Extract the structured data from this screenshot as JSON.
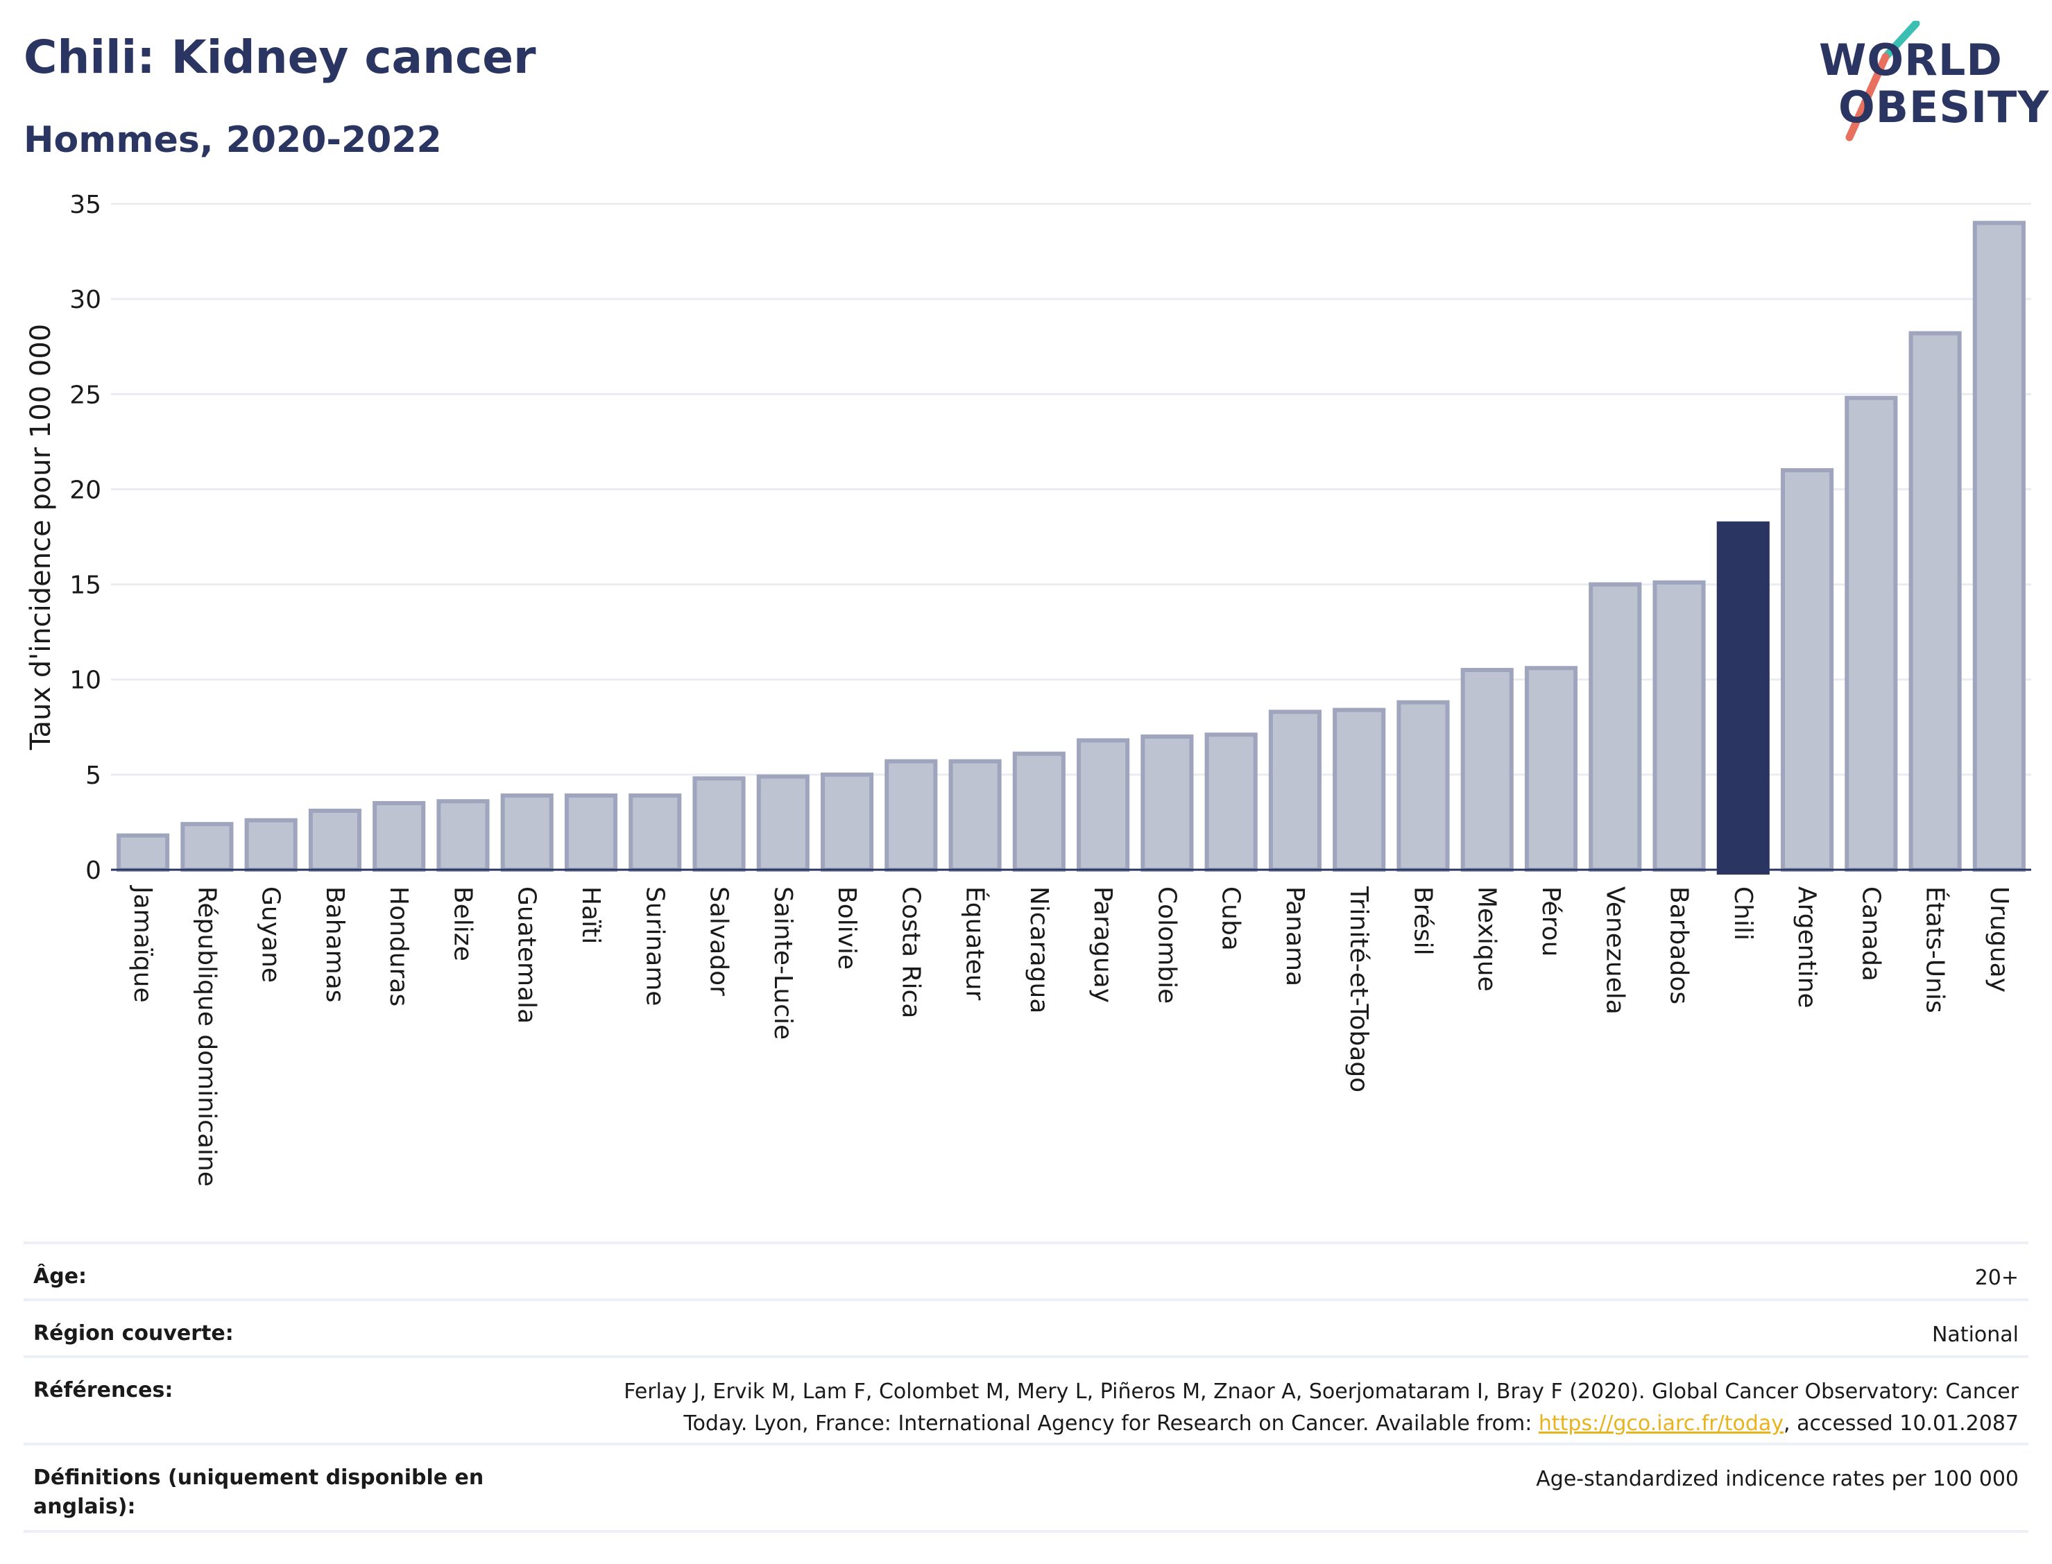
{
  "header": {
    "title": "Chili: Kidney cancer",
    "subtitle": "Hommes, 2020-2022"
  },
  "logo": {
    "line1": "WORLD",
    "line2": "OBESITY",
    "colors": {
      "text": "#2a3561",
      "slash_top": "#3bbfb3",
      "slash_bottom": "#e8705e"
    }
  },
  "chart_data": {
    "type": "bar",
    "xlabel": "",
    "ylabel": "Taux d'incidence pour 100 000",
    "ylim": [
      0,
      35
    ],
    "yticks": [
      0,
      5,
      10,
      15,
      20,
      25,
      30,
      35
    ],
    "grid": true,
    "legend": "none",
    "highlight": "Chili",
    "colors": {
      "bar": "#bec3d1",
      "bar_edge": "#9ea5bd",
      "highlight": "#2a3561",
      "grid": "#eaecf2"
    },
    "categories": [
      "Jamaïque",
      "République dominicaine",
      "Guyane",
      "Bahamas",
      "Honduras",
      "Belize",
      "Guatemala",
      "Haïti",
      "Suriname",
      "Salvador",
      "Sainte-Lucie",
      "Bolivie",
      "Costa Rica",
      "Équateur",
      "Nicaragua",
      "Paraguay",
      "Colombie",
      "Cuba",
      "Panama",
      "Trinité-et-Tobago",
      "Brésil",
      "Mexique",
      "Pérou",
      "Venezuela",
      "Barbados",
      "Chili",
      "Argentine",
      "Canada",
      "États-Unis",
      "Uruguay"
    ],
    "values": [
      1.8,
      2.4,
      2.6,
      3.1,
      3.5,
      3.6,
      3.9,
      3.9,
      3.9,
      4.8,
      4.9,
      5.0,
      5.7,
      5.7,
      6.1,
      6.8,
      7.0,
      7.1,
      8.3,
      8.4,
      8.8,
      10.5,
      10.6,
      15.0,
      15.1,
      18.2,
      21.0,
      24.8,
      28.2,
      34.0
    ]
  },
  "meta": [
    {
      "key": "Âge:",
      "value": "20+"
    },
    {
      "key": "Région couverte:",
      "value": "National"
    },
    {
      "key": "Références:",
      "value_before": "Ferlay J, Ervik M, Lam F, Colombet M, Mery L, Piñeros M, Znaor A, Soerjomataram I, Bray F (2020). Global Cancer Observatory: Cancer Today. Lyon, France: International Agency for Research on Cancer. Available from: ",
      "link": "https://gco.iarc.fr/today",
      "value_after": ", accessed 10.01.2087"
    },
    {
      "key": "Définitions (uniquement disponible en anglais):",
      "value": "Age-standardized indicence rates per 100 000"
    }
  ]
}
